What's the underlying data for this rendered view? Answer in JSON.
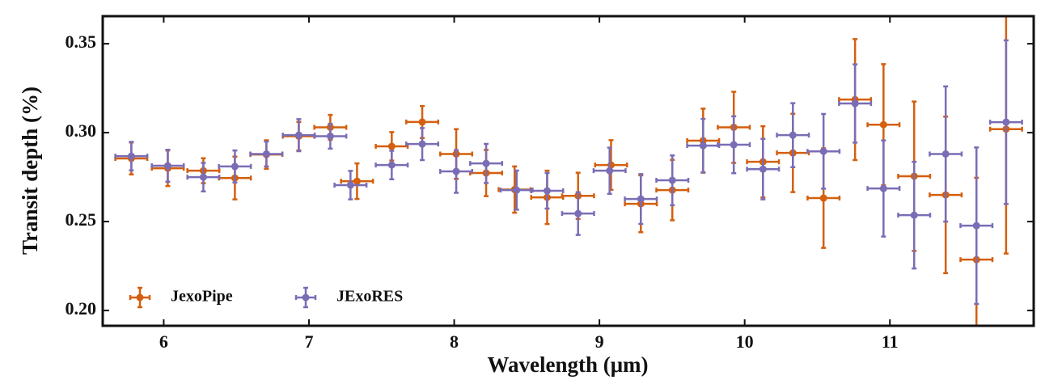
{
  "chart_data": {
    "type": "errorbar",
    "xlabel": "Wavelength (μm)",
    "ylabel": "Transit depth (%)",
    "xlim": [
      5.58,
      11.99
    ],
    "ylim": [
      0.1914,
      0.3655
    ],
    "xticks": [
      6,
      7,
      8,
      9,
      10,
      11
    ],
    "yticks": [
      {
        "value": 0.2,
        "label": "0.20"
      },
      {
        "value": 0.25,
        "label": "0.25"
      },
      {
        "value": 0.3,
        "label": "0.30"
      },
      {
        "value": 0.35,
        "label": "0.35"
      }
    ],
    "legend": "lower left",
    "series": [
      {
        "name": "JexoPipe",
        "color": "#d45f0e",
        "x": [
          5.777,
          6.028,
          6.273,
          6.49,
          6.707,
          6.93,
          7.147,
          7.331,
          7.57,
          7.78,
          8.014,
          8.22,
          8.416,
          8.64,
          8.853,
          9.08,
          9.285,
          9.502,
          9.714,
          9.925,
          10.126,
          10.332,
          10.543,
          10.76,
          10.956,
          11.167,
          11.384,
          11.596,
          11.8
        ],
        "values": [
          0.2855,
          0.28,
          0.2786,
          0.2745,
          0.2877,
          0.298,
          0.303,
          0.2727,
          0.2923,
          0.306,
          0.288,
          0.2773,
          0.268,
          0.2636,
          0.2645,
          0.2818,
          0.26,
          0.2677,
          0.2955,
          0.303,
          0.2836,
          0.2886,
          0.2632,
          0.3186,
          0.3045,
          0.2755,
          0.265,
          0.2286,
          0.302
        ],
        "yerr": [
          0.009,
          0.01,
          0.007,
          0.012,
          0.008,
          0.008,
          0.007,
          0.01,
          0.008,
          0.009,
          0.014,
          0.013,
          0.013,
          0.015,
          0.013,
          0.014,
          0.016,
          0.017,
          0.018,
          0.02,
          0.02,
          0.022,
          0.028,
          0.034,
          0.034,
          0.042,
          0.044,
          0.046,
          0.07
        ],
        "xerr": [
          0.11,
          0.11,
          0.11,
          0.11,
          0.11,
          0.11,
          0.11,
          0.11,
          0.11,
          0.11,
          0.11,
          0.11,
          0.11,
          0.11,
          0.11,
          0.11,
          0.11,
          0.11,
          0.11,
          0.11,
          0.11,
          0.11,
          0.11,
          0.11,
          0.11,
          0.11,
          0.11,
          0.11,
          0.11
        ]
      },
      {
        "name": "JExoRES",
        "color": "#7a6db5",
        "x": [
          5.777,
          6.028,
          6.273,
          6.49,
          6.707,
          6.93,
          7.147,
          7.286,
          7.57,
          7.78,
          8.014,
          8.22,
          8.43,
          8.64,
          8.853,
          9.07,
          9.285,
          9.502,
          9.714,
          9.925,
          10.126,
          10.332,
          10.543,
          10.76,
          10.956,
          11.167,
          11.384,
          11.596,
          11.8
        ],
        "values": [
          0.2868,
          0.2814,
          0.275,
          0.281,
          0.288,
          0.2986,
          0.298,
          0.2705,
          0.2818,
          0.2936,
          0.2782,
          0.2827,
          0.2677,
          0.2673,
          0.2545,
          0.2786,
          0.2627,
          0.2732,
          0.2927,
          0.2932,
          0.2795,
          0.2986,
          0.2895,
          0.3164,
          0.2686,
          0.2536,
          0.288,
          0.2477,
          0.3059
        ],
        "yerr": [
          0.008,
          0.009,
          0.008,
          0.009,
          0.007,
          0.009,
          0.007,
          0.008,
          0.008,
          0.009,
          0.012,
          0.011,
          0.011,
          0.01,
          0.012,
          0.013,
          0.014,
          0.014,
          0.015,
          0.016,
          0.017,
          0.018,
          0.021,
          0.022,
          0.027,
          0.03,
          0.038,
          0.044,
          0.046
        ],
        "xerr": [
          0.11,
          0.11,
          0.11,
          0.11,
          0.11,
          0.11,
          0.11,
          0.11,
          0.11,
          0.11,
          0.11,
          0.11,
          0.11,
          0.11,
          0.11,
          0.11,
          0.11,
          0.11,
          0.11,
          0.11,
          0.11,
          0.11,
          0.11,
          0.11,
          0.11,
          0.11,
          0.11,
          0.11,
          0.11
        ]
      }
    ]
  }
}
